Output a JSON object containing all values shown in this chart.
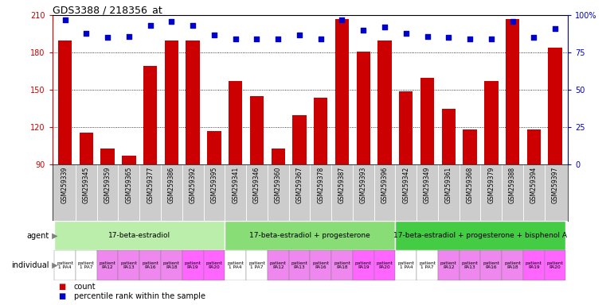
{
  "title": "GDS3388 / 218356_at",
  "gsm_labels": [
    "GSM259339",
    "GSM259345",
    "GSM259359",
    "GSM259365",
    "GSM259377",
    "GSM259386",
    "GSM259392",
    "GSM259395",
    "GSM259341",
    "GSM259346",
    "GSM259360",
    "GSM259367",
    "GSM259378",
    "GSM259387",
    "GSM259393",
    "GSM259396",
    "GSM259342",
    "GSM259349",
    "GSM259361",
    "GSM259368",
    "GSM259379",
    "GSM259388",
    "GSM259394",
    "GSM259397"
  ],
  "bar_values": [
    190,
    116,
    103,
    97,
    169,
    190,
    190,
    117,
    157,
    145,
    103,
    130,
    144,
    207,
    181,
    190,
    149,
    160,
    135,
    118,
    157,
    207,
    118,
    184
  ],
  "percentile_values": [
    97,
    88,
    85,
    86,
    93,
    96,
    93,
    87,
    84,
    84,
    84,
    87,
    84,
    97,
    90,
    92,
    88,
    86,
    85,
    84,
    84,
    96,
    85,
    91
  ],
  "ylim_left": [
    90,
    210
  ],
  "ylim_right": [
    0,
    100
  ],
  "yticks_left": [
    90,
    120,
    150,
    180,
    210
  ],
  "yticks_right": [
    0,
    25,
    50,
    75,
    100
  ],
  "ytick_labels_right": [
    "0",
    "25",
    "50",
    "75",
    "100%"
  ],
  "bar_color": "#cc0000",
  "dot_color": "#0000cc",
  "bg_color": "#ffffff",
  "agent_groups": [
    {
      "label": "17-beta-estradiol",
      "start": 0,
      "end": 8,
      "color": "#bbeeaa"
    },
    {
      "label": "17-beta-estradiol + progesterone",
      "start": 8,
      "end": 16,
      "color": "#88dd77"
    },
    {
      "label": "17-beta-estradiol + progesterone + bisphenol A",
      "start": 16,
      "end": 24,
      "color": "#44cc44"
    }
  ],
  "individual_labels": [
    "patient\n1 PA4",
    "patient\n1 PA7",
    "patient\nPA12",
    "patient\nPA13",
    "patient\nPA16",
    "patient\nPA18",
    "patient\nPA19",
    "patient\nPA20",
    "patient\n1 PA4",
    "patient\n1 PA7",
    "patient\nPA12",
    "patient\nPA13",
    "patient\nPA16",
    "patient\nPA18",
    "patient\nPA19",
    "patient\nPA20",
    "patient\n1 PA4",
    "patient\n1 PA7",
    "patient\nPA12",
    "patient\nPA13",
    "patient\nPA16",
    "patient\nPA18",
    "patient\nPA19",
    "patient\nPA20"
  ],
  "individual_colors": [
    "#ffffff",
    "#ffffff",
    "#ee88ee",
    "#ee88ee",
    "#ee88ee",
    "#ee88ee",
    "#ff66ff",
    "#ff66ff",
    "#ffffff",
    "#ffffff",
    "#ee88ee",
    "#ee88ee",
    "#ee88ee",
    "#ee88ee",
    "#ff66ff",
    "#ff66ff",
    "#ffffff",
    "#ffffff",
    "#ee88ee",
    "#ee88ee",
    "#ee88ee",
    "#ee88ee",
    "#ff66ff",
    "#ff66ff"
  ],
  "xaxis_bg": "#cccccc",
  "legend_count_color": "#cc0000",
  "legend_dot_color": "#0000cc"
}
